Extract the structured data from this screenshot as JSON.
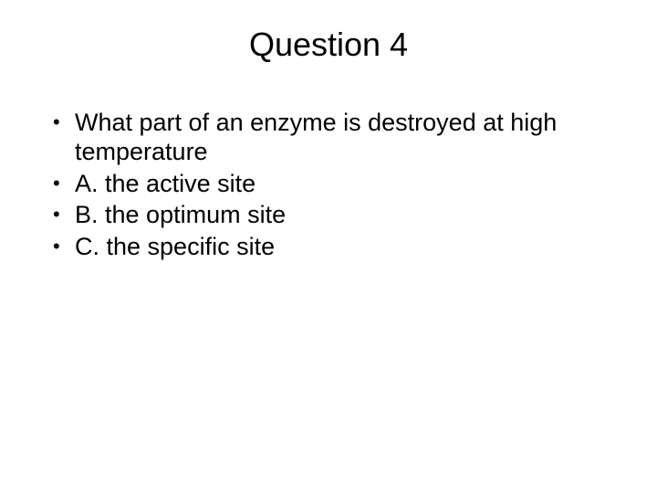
{
  "slide": {
    "title": "Question 4",
    "bullets": [
      "What part of an enzyme is destroyed at high temperature",
      "A. the active site",
      "B. the optimum site",
      "C. the specific site"
    ]
  },
  "styling": {
    "background_color": "#ffffff",
    "text_color": "#000000",
    "title_fontsize": 36,
    "body_fontsize": 27,
    "font_family": "Arial",
    "slide_width": 720,
    "slide_height": 540,
    "bullet_char": "•"
  }
}
